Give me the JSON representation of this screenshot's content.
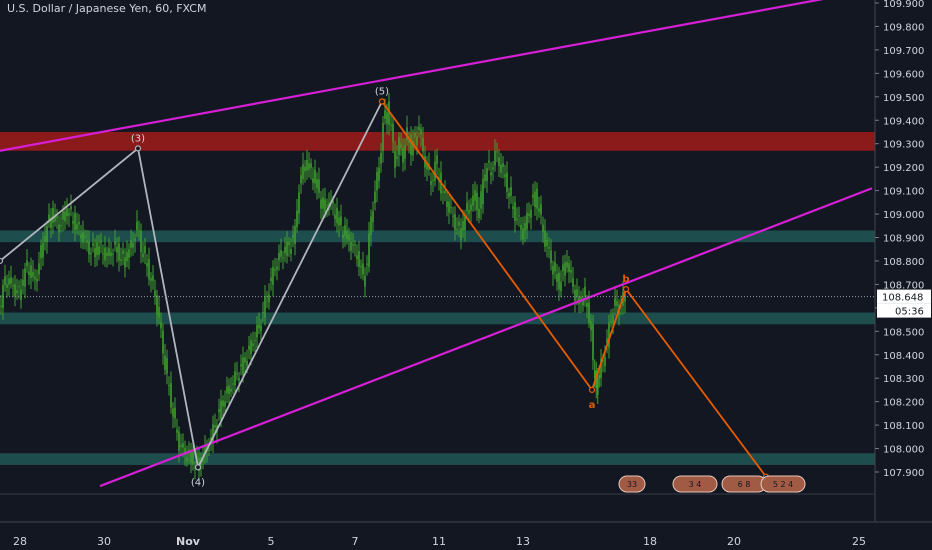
{
  "header": {
    "symbol_title": "U.S. Dollar / Japanese Yen, 60, FXCM"
  },
  "colors": {
    "background": "#131722",
    "candle": "#3fa12d",
    "zone_teal": "#1e4d4d",
    "zone_red": "#8b1a1a",
    "channel": "#d61fd6",
    "wave_main": "#b2b5be",
    "wave_projection": "#e65c00",
    "price_label_bg": "#ffffff"
  },
  "current_price": {
    "label": "108.648",
    "countdown": "05:36",
    "side_fragment": "1("
  },
  "chart_data": {
    "type": "candlestick",
    "title": "U.S. Dollar / Japanese Yen, 60, FXCM",
    "xlabel": "",
    "ylabel": "",
    "ylim": [
      107.8,
      109.95
    ],
    "x_axis_ticks": [
      "28",
      "30",
      "Nov",
      "5",
      "7",
      "11",
      "13",
      "18",
      "20",
      "25"
    ],
    "y_axis_ticks": [
      "109.900",
      "109.800",
      "109.700",
      "109.600",
      "109.500",
      "109.400",
      "109.300",
      "109.200",
      "109.100",
      "109.000",
      "108.900",
      "108.800",
      "108.700",
      "108.600",
      "108.500",
      "108.400",
      "108.300",
      "108.200",
      "108.100",
      "108.000",
      "107.900"
    ],
    "current_price": 108.648,
    "grid": false,
    "price_series": [
      [
        0,
        108.58
      ],
      [
        6,
        108.72
      ],
      [
        12,
        108.7
      ],
      [
        20,
        108.66
      ],
      [
        28,
        108.78
      ],
      [
        36,
        108.71
      ],
      [
        44,
        108.88
      ],
      [
        52,
        109.0
      ],
      [
        60,
        108.95
      ],
      [
        68,
        109.02
      ],
      [
        76,
        108.96
      ],
      [
        84,
        108.9
      ],
      [
        92,
        108.84
      ],
      [
        100,
        108.86
      ],
      [
        108,
        108.82
      ],
      [
        116,
        108.86
      ],
      [
        124,
        108.8
      ],
      [
        132,
        108.86
      ],
      [
        138,
        108.95
      ],
      [
        142,
        108.86
      ],
      [
        148,
        108.78
      ],
      [
        152,
        108.72
      ],
      [
        156,
        108.65
      ],
      [
        160,
        108.55
      ],
      [
        164,
        108.42
      ],
      [
        168,
        108.3
      ],
      [
        172,
        108.2
      ],
      [
        176,
        108.1
      ],
      [
        180,
        108.02
      ],
      [
        186,
        107.98
      ],
      [
        192,
        107.96
      ],
      [
        198,
        107.93
      ],
      [
        204,
        107.97
      ],
      [
        210,
        108.02
      ],
      [
        216,
        108.1
      ],
      [
        222,
        108.18
      ],
      [
        228,
        108.24
      ],
      [
        236,
        108.3
      ],
      [
        244,
        108.36
      ],
      [
        252,
        108.44
      ],
      [
        260,
        108.52
      ],
      [
        266,
        108.62
      ],
      [
        272,
        108.72
      ],
      [
        278,
        108.8
      ],
      [
        284,
        108.84
      ],
      [
        290,
        108.86
      ],
      [
        296,
        108.92
      ],
      [
        300,
        109.12
      ],
      [
        306,
        109.22
      ],
      [
        312,
        109.18
      ],
      [
        318,
        109.12
      ],
      [
        324,
        109.02
      ],
      [
        330,
        109.06
      ],
      [
        336,
        109.0
      ],
      [
        342,
        108.94
      ],
      [
        348,
        108.9
      ],
      [
        354,
        108.86
      ],
      [
        360,
        108.8
      ],
      [
        364,
        108.72
      ],
      [
        368,
        108.8
      ],
      [
        372,
        108.98
      ],
      [
        376,
        109.1
      ],
      [
        380,
        109.2
      ],
      [
        384,
        109.38
      ],
      [
        388,
        109.45
      ],
      [
        392,
        109.36
      ],
      [
        396,
        109.22
      ],
      [
        400,
        109.3
      ],
      [
        404,
        109.25
      ],
      [
        408,
        109.34
      ],
      [
        412,
        109.28
      ],
      [
        416,
        109.32
      ],
      [
        420,
        109.38
      ],
      [
        424,
        109.25
      ],
      [
        428,
        109.2
      ],
      [
        432,
        109.12
      ],
      [
        436,
        109.22
      ],
      [
        440,
        109.15
      ],
      [
        444,
        109.08
      ],
      [
        448,
        109.05
      ],
      [
        452,
        109.0
      ],
      [
        456,
        108.96
      ],
      [
        460,
        108.92
      ],
      [
        464,
        108.96
      ],
      [
        468,
        109.02
      ],
      [
        472,
        109.04
      ],
      [
        476,
        109.08
      ],
      [
        480,
        109.0
      ],
      [
        484,
        109.14
      ],
      [
        488,
        109.2
      ],
      [
        492,
        109.18
      ],
      [
        496,
        109.26
      ],
      [
        500,
        109.22
      ],
      [
        504,
        109.18
      ],
      [
        508,
        109.12
      ],
      [
        512,
        109.05
      ],
      [
        516,
        109.0
      ],
      [
        520,
        108.96
      ],
      [
        524,
        108.92
      ],
      [
        528,
        108.98
      ],
      [
        532,
        109.04
      ],
      [
        536,
        109.08
      ],
      [
        540,
        109.02
      ],
      [
        544,
        108.92
      ],
      [
        548,
        108.86
      ],
      [
        552,
        108.8
      ],
      [
        556,
        108.74
      ],
      [
        560,
        108.7
      ],
      [
        564,
        108.76
      ],
      [
        568,
        108.8
      ],
      [
        572,
        108.72
      ],
      [
        576,
        108.66
      ],
      [
        580,
        108.62
      ],
      [
        584,
        108.66
      ],
      [
        588,
        108.6
      ],
      [
        592,
        108.52
      ],
      [
        594,
        108.35
      ],
      [
        597,
        108.26
      ],
      [
        600,
        108.32
      ],
      [
        604,
        108.38
      ],
      [
        608,
        108.46
      ],
      [
        612,
        108.56
      ],
      [
        616,
        108.62
      ],
      [
        620,
        108.6
      ],
      [
        624,
        108.64
      ],
      [
        626,
        108.62
      ]
    ],
    "zones": [
      {
        "name": "resistance",
        "y_low": 109.27,
        "y_high": 109.35,
        "color": "#8b1a1a"
      },
      {
        "name": "zone-108.9",
        "y_low": 108.88,
        "y_high": 108.93,
        "color": "#1e4d4d"
      },
      {
        "name": "zone-108.55",
        "y_low": 108.53,
        "y_high": 108.58,
        "color": "#1e4d4d"
      },
      {
        "name": "zone-107.95",
        "y_low": 107.93,
        "y_high": 107.98,
        "color": "#1e4d4d"
      }
    ],
    "channel_lines": [
      {
        "name": "upper-channel",
        "start": [
          0,
          109.27
        ],
        "end": [
          865,
          109.95
        ]
      },
      {
        "name": "lower-channel",
        "start": [
          100,
          107.84
        ],
        "end": [
          872,
          109.11
        ]
      }
    ],
    "wave_main": {
      "points": [
        [
          0,
          108.8
        ],
        [
          138,
          109.28
        ],
        [
          198,
          107.92
        ],
        [
          382,
          109.48
        ]
      ],
      "labels": [
        {
          "text": "(3)",
          "at": 1
        },
        {
          "text": "(4)",
          "at": 2
        },
        {
          "text": "(5)",
          "at": 3
        }
      ]
    },
    "wave_projection": {
      "points": [
        [
          382,
          109.48
        ],
        [
          592,
          108.25
        ],
        [
          626,
          108.68
        ],
        [
          766,
          107.88
        ]
      ],
      "labels": [
        {
          "text": "a",
          "at": 1
        },
        {
          "text": "b",
          "at": 2
        }
      ]
    },
    "time_markers": [
      "33",
      "3 4",
      "6 8",
      "5 2 4"
    ]
  }
}
